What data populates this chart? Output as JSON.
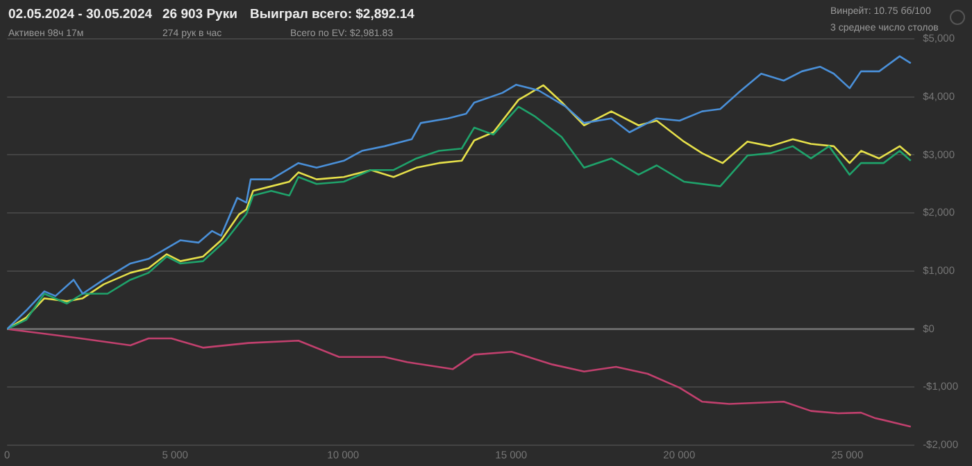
{
  "chart_data": {
    "type": "line",
    "title": "02.05.2024 - 30.05.2024",
    "subtitle": "Активен 98ч 17м",
    "annotations": [
      "26 903 Руки",
      "274 рук в час",
      "Выиграл всего: $2,892.14",
      "Всего по EV: $2,981.83",
      "Винрейт: 10.75 бб/100",
      "3 среднее число столов"
    ],
    "xlim": [
      0,
      27000
    ],
    "xticks": [
      0,
      {
        "value": 5000,
        "label": "5 000"
      },
      {
        "value": 10000,
        "label": "10 000"
      },
      {
        "value": 15000,
        "label": "15 000"
      },
      {
        "value": 20000,
        "label": "20 000"
      },
      {
        "value": 25000,
        "label": "25 000"
      }
    ],
    "ylim": [
      -2000,
      5000
    ],
    "yticks": [
      {
        "value": -2000,
        "label": "-$2,000"
      },
      {
        "value": -1000,
        "label": "-$1,000"
      },
      {
        "value": 0,
        "label": "$0"
      },
      {
        "value": 1000,
        "label": "$1,000"
      },
      {
        "value": 2000,
        "label": "$2,000"
      },
      {
        "value": 3000,
        "label": "$3,000"
      },
      {
        "value": 4000,
        "label": "$4,000"
      },
      {
        "value": 5000,
        "label": "$5,000"
      }
    ],
    "grid": "y",
    "legend": false,
    "marker": "none",
    "ref_lines": [
      {
        "axis": "y",
        "value": 0,
        "color": "#6a6a6a"
      }
    ],
    "series": [
      {
        "color": "#4a90d9",
        "x": [
          0,
          570,
          1110,
          1440,
          1980,
          2250,
          2870,
          3670,
          4210,
          5160,
          5700,
          6100,
          6370,
          6850,
          7120,
          7250,
          7860,
          8670,
          9210,
          10020,
          10560,
          11230,
          12040,
          12310,
          13120,
          13660,
          13900,
          14740,
          15150,
          15820,
          16630,
          17170,
          17980,
          18520,
          19330,
          20010,
          20680,
          21220,
          21760,
          22440,
          23110,
          23650,
          24190,
          24600,
          25070,
          25410,
          25950,
          26560,
          26890
        ],
        "values": [
          0,
          320,
          650,
          570,
          850,
          610,
          850,
          1130,
          1210,
          1530,
          1490,
          1690,
          1610,
          2260,
          2180,
          2580,
          2580,
          2860,
          2780,
          2900,
          3070,
          3150,
          3270,
          3550,
          3630,
          3710,
          3900,
          4070,
          4210,
          4110,
          3830,
          3550,
          3630,
          3390,
          3630,
          3590,
          3750,
          3790,
          4070,
          4400,
          4280,
          4440,
          4520,
          4400,
          4150,
          4440,
          4440,
          4700,
          4580
        ]
      },
      {
        "color": "#1fa36b",
        "x": [
          0,
          570,
          1110,
          1780,
          2250,
          2990,
          3670,
          4210,
          4750,
          5160,
          5830,
          6510,
          7120,
          7320,
          7860,
          8400,
          8670,
          9210,
          10020,
          10830,
          11500,
          12180,
          12850,
          13530,
          13900,
          14470,
          15220,
          15690,
          16500,
          17170,
          17980,
          18790,
          19330,
          20140,
          21220,
          22030,
          22710,
          23380,
          23920,
          24460,
          25070,
          25410,
          26080,
          26560,
          26890
        ],
        "values": [
          0,
          160,
          610,
          440,
          610,
          610,
          850,
          970,
          1250,
          1130,
          1170,
          1530,
          1980,
          2300,
          2380,
          2300,
          2620,
          2500,
          2540,
          2740,
          2740,
          2940,
          3070,
          3110,
          3470,
          3350,
          3830,
          3670,
          3310,
          2780,
          2940,
          2660,
          2820,
          2540,
          2460,
          2990,
          3030,
          3150,
          2940,
          3150,
          2660,
          2860,
          2860,
          3070,
          2900
        ]
      },
      {
        "color": "#e6e04a",
        "x": [
          0,
          570,
          1110,
          1780,
          2250,
          2870,
          3670,
          4210,
          4750,
          5160,
          5830,
          6370,
          6910,
          7120,
          7320,
          7860,
          8400,
          8670,
          9210,
          10020,
          10830,
          11500,
          12180,
          12850,
          13530,
          13900,
          14470,
          15220,
          15960,
          16500,
          17170,
          17980,
          18790,
          19330,
          20140,
          20680,
          21290,
          22030,
          22710,
          23380,
          23920,
          24600,
          25070,
          25410,
          25950,
          26560,
          26890
        ],
        "values": [
          0,
          200,
          530,
          480,
          530,
          770,
          970,
          1050,
          1290,
          1170,
          1250,
          1530,
          1980,
          2060,
          2380,
          2460,
          2540,
          2700,
          2580,
          2620,
          2740,
          2620,
          2780,
          2860,
          2900,
          3250,
          3390,
          3950,
          4200,
          3910,
          3510,
          3750,
          3510,
          3590,
          3230,
          3030,
          2860,
          3230,
          3150,
          3270,
          3190,
          3150,
          2860,
          3070,
          2940,
          3150,
          2990
        ]
      },
      {
        "color": "#c2406e",
        "x": [
          0,
          1110,
          2190,
          3670,
          4210,
          4890,
          5830,
          7180,
          8670,
          9880,
          11230,
          11910,
          13260,
          13900,
          15010,
          16230,
          17170,
          18120,
          19060,
          20010,
          20680,
          21490,
          23110,
          23920,
          24730,
          25410,
          25810,
          26890
        ],
        "values": [
          0,
          -80,
          -160,
          -280,
          -160,
          -160,
          -320,
          -240,
          -200,
          -480,
          -480,
          -570,
          -690,
          -440,
          -390,
          -610,
          -730,
          -650,
          -770,
          -1010,
          -1250,
          -1290,
          -1250,
          -1410,
          -1450,
          -1440,
          -1530,
          -1680
        ]
      }
    ]
  }
}
